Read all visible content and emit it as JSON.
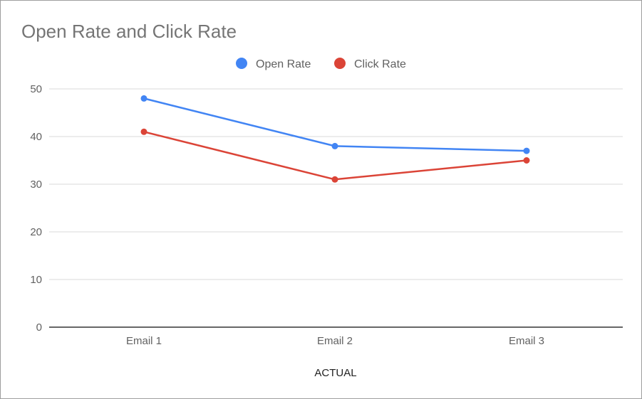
{
  "chart_data": {
    "type": "line",
    "title": "Open Rate and Click Rate",
    "xlabel": "ACTUAL",
    "ylabel": "",
    "categories": [
      "Email 1",
      "Email 2",
      "Email 3"
    ],
    "series": [
      {
        "name": "Open Rate",
        "color": "#4285f4",
        "values": [
          48,
          38,
          37
        ]
      },
      {
        "name": "Click Rate",
        "color": "#db4437",
        "values": [
          41,
          31,
          35
        ]
      }
    ],
    "ylim": [
      0,
      50
    ],
    "yticks": [
      0,
      10,
      20,
      30,
      40,
      50
    ],
    "grid": true,
    "legend_position": "top-center"
  }
}
